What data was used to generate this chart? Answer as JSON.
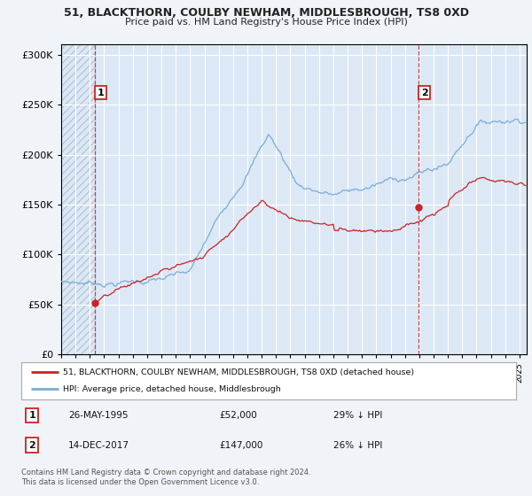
{
  "title1": "51, BLACKTHORN, COULBY NEWHAM, MIDDLESBROUGH, TS8 0XD",
  "title2": "Price paid vs. HM Land Registry's House Price Index (HPI)",
  "background_color": "#f0f4f8",
  "plot_bg": "#dce8f5",
  "sale1_price": 52000,
  "sale1_label": "26-MAY-1995",
  "sale1_hpi_text": "29% ↓ HPI",
  "sale2_price": 147000,
  "sale2_label": "14-DEC-2017",
  "sale2_hpi_text": "26% ↓ HPI",
  "legend1": "51, BLACKTHORN, COULBY NEWHAM, MIDDLESBROUGH, TS8 0XD (detached house)",
  "legend2": "HPI: Average price, detached house, Middlesbrough",
  "footer": "Contains HM Land Registry data © Crown copyright and database right 2024.\nThis data is licensed under the Open Government Licence v3.0.",
  "ylim": [
    0,
    310000
  ],
  "yticks": [
    0,
    50000,
    100000,
    150000,
    200000,
    250000,
    300000
  ],
  "ytick_labels": [
    "£0",
    "£50K",
    "£100K",
    "£150K",
    "£200K",
    "£250K",
    "£300K"
  ],
  "red_line_color": "#cc2222",
  "blue_line_color": "#7aadd4",
  "marker_color": "#cc2222",
  "dashed_line_color": "#cc2222",
  "hatch_color": "#b8c8d8",
  "sale1_x": 1995.37,
  "sale2_x": 2017.96
}
